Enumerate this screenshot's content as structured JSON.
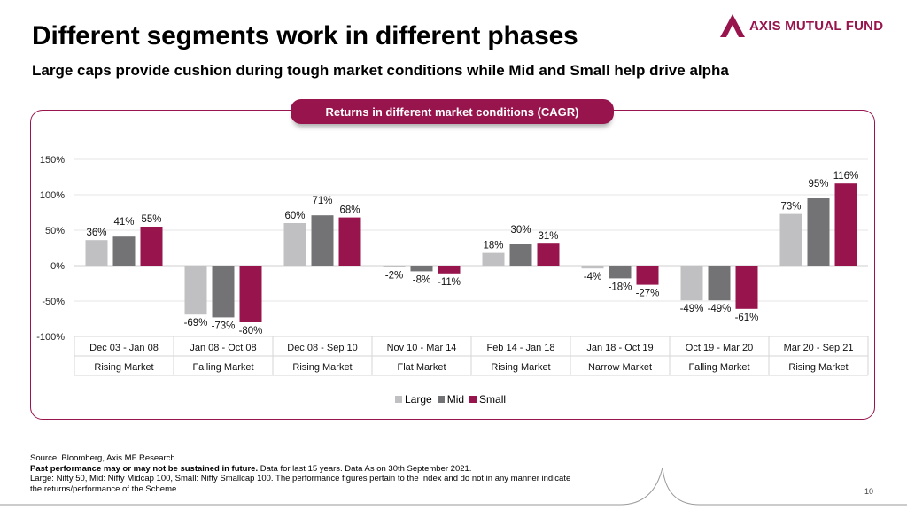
{
  "header": {
    "title": "Different segments work in different phases",
    "subtitle": "Large caps provide cushion during tough market conditions while Mid and Small help drive alpha",
    "logo_text": "AXIS MUTUAL FUND"
  },
  "panel_title": "Returns in different market conditions (CAGR)",
  "colors": {
    "brand": "#97144d",
    "large": "#c0c0c2",
    "mid": "#737375",
    "small": "#97144d"
  },
  "chart_data": {
    "type": "bar",
    "title": "Returns in different market conditions (CAGR)",
    "ylim": [
      -100,
      150
    ],
    "yticks": [
      "150%",
      "100%",
      "50%",
      "0%",
      "-50%",
      "-100%"
    ],
    "ytick_values": [
      150,
      100,
      50,
      0,
      -50,
      -100
    ],
    "categories": [
      "Dec 03 - Jan 08",
      "Jan 08 - Oct 08",
      "Dec 08 - Sep 10",
      "Nov 10 - Mar 14",
      "Feb 14 - Jan 18",
      "Jan 18 - Oct 19",
      "Oct 19 - Mar 20",
      "Mar 20 - Sep 21"
    ],
    "subcategories": [
      "Rising Market",
      "Falling Market",
      "Rising Market",
      "Flat Market",
      "Rising Market",
      "Narrow Market",
      "Falling Market",
      "Rising Market"
    ],
    "series": [
      {
        "name": "Large",
        "values": [
          36,
          -69,
          60,
          -2,
          18,
          -4,
          -49,
          73
        ]
      },
      {
        "name": "Mid",
        "values": [
          41,
          -73,
          71,
          -8,
          30,
          -18,
          -49,
          95
        ]
      },
      {
        "name": "Small",
        "values": [
          55,
          -80,
          68,
          -11,
          31,
          -27,
          -61,
          116
        ]
      }
    ],
    "grid": true,
    "legend": "bottom"
  },
  "legend": {
    "large": "Large",
    "mid": "Mid",
    "small": "Small"
  },
  "footer": {
    "line1": "Source: Bloomberg, Axis MF Research.",
    "line2_bold": "Past performance may or may not be sustained in future.",
    "line2_rest": " Data for last 15 years. Data As on 30th September 2021.",
    "line3": "Large:  Nifty 50, Mid: Nifty Midcap 100, Small: Nifty Smallcap 100. The performance figures pertain to the Index and do not in any manner indicate",
    "line4": "the returns/performance of the Scheme."
  },
  "page_number": "10"
}
